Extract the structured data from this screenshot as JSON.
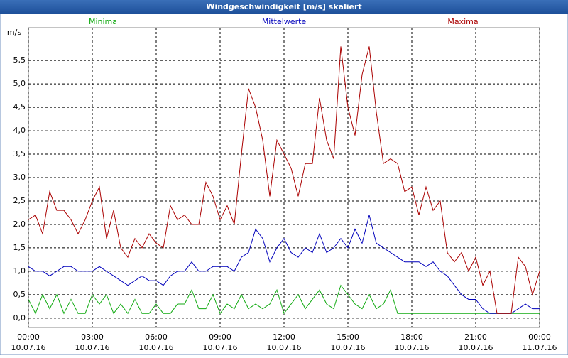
{
  "chart_data": {
    "type": "line",
    "title": "Windgeschwindigkeit [m/s] skaliert",
    "y_label": "m/s",
    "x": [
      0,
      20,
      40,
      60,
      80,
      100,
      120,
      140,
      160,
      180,
      200,
      220,
      240,
      260,
      280,
      300,
      320,
      340,
      360,
      380,
      400,
      420,
      440,
      460,
      480,
      500,
      520,
      540,
      560,
      580,
      600,
      620,
      640,
      660,
      680,
      700,
      720,
      740,
      760,
      780,
      800,
      820,
      840,
      860,
      880,
      900,
      920,
      940,
      960,
      980,
      1000,
      1020,
      1040,
      1060,
      1080,
      1100,
      1120,
      1140,
      1160,
      1180,
      1200,
      1220,
      1240,
      1260,
      1280,
      1300,
      1320,
      1340,
      1360,
      1380,
      1400,
      1420,
      1440
    ],
    "xlim": [
      0,
      1440
    ],
    "xticks": [
      {
        "value": 0,
        "label": "00:00"
      },
      {
        "value": 180,
        "label": "03:00"
      },
      {
        "value": 360,
        "label": "06:00"
      },
      {
        "value": 540,
        "label": "09:00"
      },
      {
        "value": 720,
        "label": "12:00"
      },
      {
        "value": 900,
        "label": "15:00"
      },
      {
        "value": 1080,
        "label": "18:00"
      },
      {
        "value": 1260,
        "label": "21:00"
      },
      {
        "value": 1440,
        "label": "00:00"
      }
    ],
    "xtick_dates": [
      "10.07.16",
      "10.07.16",
      "10.07.16",
      "10.07.16",
      "10.07.16",
      "10.07.16",
      "10.07.16",
      "10.07.16",
      "11.07.16"
    ],
    "ylim": [
      -0.2,
      6.2
    ],
    "yticks": [
      {
        "value": 0,
        "label": "0,0"
      },
      {
        "value": 0.5,
        "label": "0,5"
      },
      {
        "value": 1,
        "label": "1,0"
      },
      {
        "value": 1.5,
        "label": "1,5"
      },
      {
        "value": 2,
        "label": "2,0"
      },
      {
        "value": 2.5,
        "label": "2,5"
      },
      {
        "value": 3,
        "label": "3,0"
      },
      {
        "value": 3.5,
        "label": "3,5"
      },
      {
        "value": 4,
        "label": "4,0"
      },
      {
        "value": 4.5,
        "label": "4,5"
      },
      {
        "value": 5,
        "label": "5,0"
      },
      {
        "value": 5.5,
        "label": "5,5"
      }
    ],
    "grid": true,
    "series": [
      {
        "name": "Minima",
        "color": "#11aa11",
        "values": [
          0.4,
          0.1,
          0.5,
          0.2,
          0.5,
          0.1,
          0.4,
          0.1,
          0.1,
          0.5,
          0.3,
          0.5,
          0.1,
          0.3,
          0.1,
          0.4,
          0.1,
          0.1,
          0.3,
          0.1,
          0.1,
          0.3,
          0.3,
          0.6,
          0.2,
          0.2,
          0.5,
          0.1,
          0.3,
          0.2,
          0.5,
          0.2,
          0.3,
          0.2,
          0.3,
          0.6,
          0.1,
          0.3,
          0.5,
          0.2,
          0.4,
          0.6,
          0.3,
          0.2,
          0.7,
          0.5,
          0.3,
          0.2,
          0.5,
          0.2,
          0.3,
          0.6,
          0.1,
          0.1,
          0.1,
          0.1,
          0.1,
          0.1,
          0.1,
          0.1,
          0.1,
          0.1,
          0.1,
          0.1,
          0.1,
          0.1,
          0.1,
          0.1,
          0.1,
          0.1,
          0.1,
          0.1,
          0.1
        ]
      },
      {
        "name": "Mittelwerte",
        "color": "#0000bb",
        "values": [
          1.1,
          1.0,
          1.0,
          0.9,
          1.0,
          1.1,
          1.1,
          1.0,
          1.0,
          1.0,
          1.1,
          1.0,
          0.9,
          0.8,
          0.7,
          0.8,
          0.9,
          0.8,
          0.8,
          0.7,
          0.9,
          1.0,
          1.0,
          1.2,
          1.0,
          1.0,
          1.1,
          1.1,
          1.1,
          1.0,
          1.3,
          1.4,
          1.9,
          1.7,
          1.2,
          1.5,
          1.7,
          1.4,
          1.3,
          1.5,
          1.4,
          1.8,
          1.4,
          1.5,
          1.7,
          1.5,
          1.9,
          1.6,
          2.2,
          1.6,
          1.5,
          1.4,
          1.3,
          1.2,
          1.2,
          1.2,
          1.1,
          1.2,
          1.0,
          0.9,
          0.7,
          0.5,
          0.4,
          0.4,
          0.2,
          0.1,
          0.1,
          0.1,
          0.1,
          0.2,
          0.3,
          0.2,
          0.2
        ]
      },
      {
        "name": "Maxima",
        "color": "#aa0000",
        "values": [
          2.1,
          2.2,
          1.8,
          2.7,
          2.3,
          2.3,
          2.1,
          1.8,
          2.1,
          2.5,
          2.8,
          1.7,
          2.3,
          1.5,
          1.3,
          1.7,
          1.5,
          1.8,
          1.6,
          1.5,
          2.4,
          2.1,
          2.2,
          2.0,
          2.0,
          2.9,
          2.6,
          2.1,
          2.4,
          2.0,
          3.5,
          4.9,
          4.5,
          3.8,
          2.6,
          3.8,
          3.5,
          3.2,
          2.6,
          3.3,
          3.3,
          4.7,
          3.8,
          3.4,
          5.8,
          4.5,
          3.9,
          5.2,
          5.8,
          4.4,
          3.3,
          3.4,
          3.3,
          2.7,
          2.8,
          2.2,
          2.8,
          2.3,
          2.5,
          1.4,
          1.2,
          1.4,
          1.0,
          1.3,
          0.7,
          1.0,
          0.1,
          0.1,
          0.1,
          1.3,
          1.1,
          0.5,
          1.0
        ]
      }
    ]
  }
}
